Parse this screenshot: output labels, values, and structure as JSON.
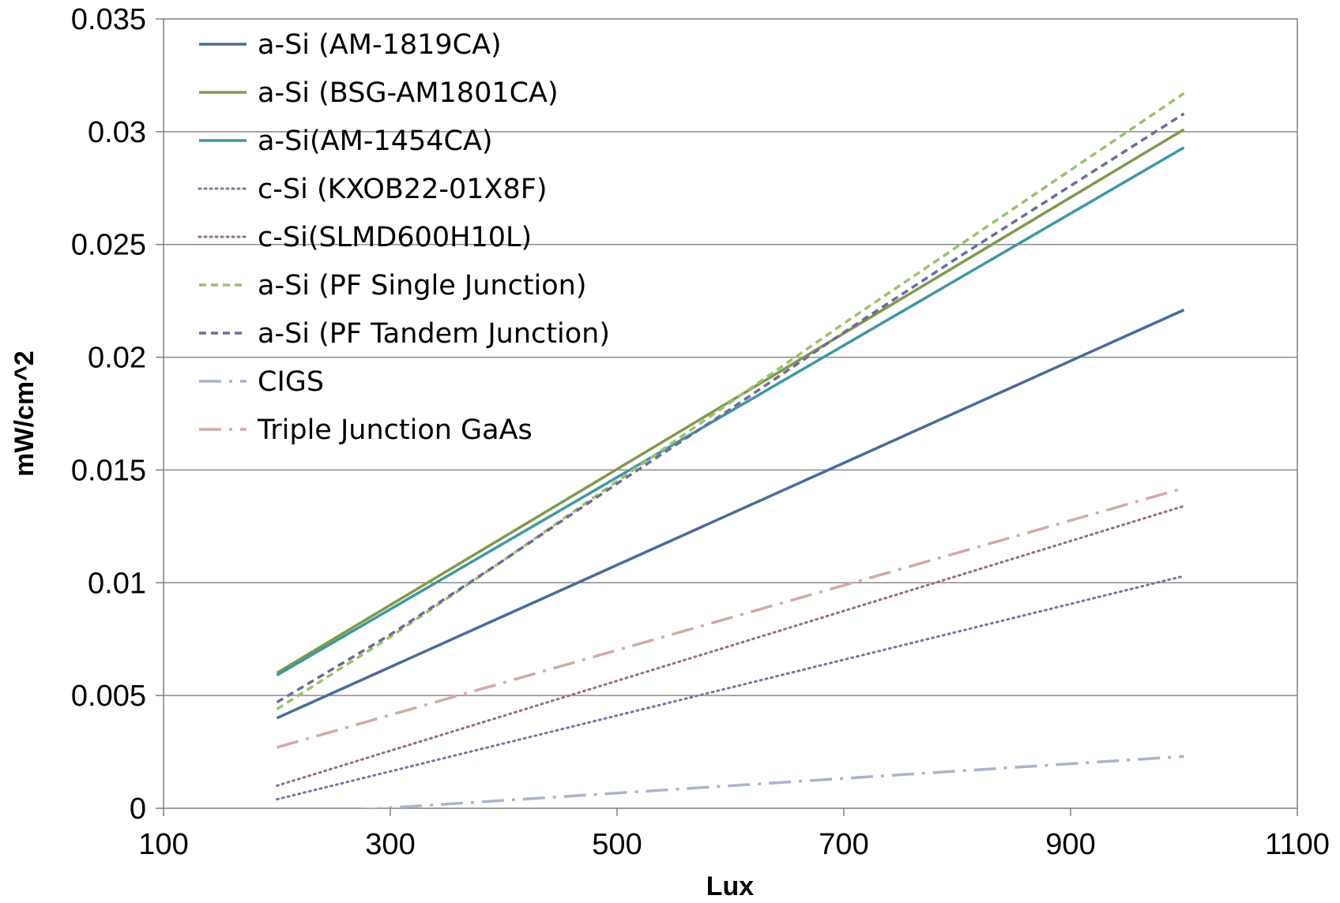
{
  "chart_data": {
    "type": "line",
    "title": "",
    "xlabel": "Lux",
    "ylabel": "mW/cm^2",
    "xlim": [
      100,
      1100
    ],
    "ylim": [
      0,
      0.035
    ],
    "xticks": [
      100,
      300,
      500,
      700,
      900,
      1100
    ],
    "xtick_labels": [
      "100",
      "300",
      "500",
      "700",
      "900",
      "1100"
    ],
    "yticks": [
      0,
      0.005,
      0.01,
      0.015,
      0.02,
      0.025,
      0.03,
      0.035
    ],
    "ytick_labels": [
      "0",
      "0.005",
      "0.01",
      "0.015",
      "0.02",
      "0.025",
      "0.03",
      "0.035"
    ],
    "grid": "horizontal",
    "legend_position": "top-left",
    "series": [
      {
        "name": "a-Si (AM-1819CA)",
        "color": "#4a6a9a",
        "style": "solid",
        "x": [
          200,
          1000
        ],
        "y": [
          0.004,
          0.0221
        ]
      },
      {
        "name": "a-Si (BSG-AM1801CA)",
        "color": "#7f9a4a",
        "style": "solid",
        "x": [
          200,
          1000
        ],
        "y": [
          0.006,
          0.0301
        ]
      },
      {
        "name": "a-Si(AM-1454CA)",
        "color": "#3f97a3",
        "style": "solid",
        "x": [
          200,
          1000
        ],
        "y": [
          0.0059,
          0.0293
        ]
      },
      {
        "name": "c-Si (KXOB22-01X8F)",
        "color": "#7b74a6",
        "style": "dotted",
        "x": [
          200,
          1000
        ],
        "y": [
          0.0004,
          0.0103
        ]
      },
      {
        "name": "c-Si(SLMD600H10L)",
        "color": "#9a6e78",
        "style": "dotted",
        "x": [
          200,
          1000
        ],
        "y": [
          0.001,
          0.0134
        ]
      },
      {
        "name": "a-Si (PF Single Junction)",
        "color": "#9cc26a",
        "style": "dashed",
        "x": [
          200,
          300,
          400,
          500,
          600,
          700,
          800,
          900,
          1000
        ],
        "y": [
          0.0044,
          0.0076,
          0.011,
          0.0145,
          0.018,
          0.0215,
          0.0249,
          0.0283,
          0.0317
        ]
      },
      {
        "name": "a-Si (PF Tandem Junction)",
        "color": "#6e6a9e",
        "style": "dashed",
        "x": [
          200,
          300,
          400,
          500,
          600,
          700,
          800,
          900,
          1000
        ],
        "y": [
          0.0047,
          0.0077,
          0.011,
          0.0144,
          0.0177,
          0.0211,
          0.0244,
          0.0276,
          0.0308
        ]
      },
      {
        "name": "CIGS",
        "color": "#a9b4cf",
        "style": "dashdot",
        "x": [
          200,
          1000
        ],
        "y": [
          -0.0003,
          0.0023
        ]
      },
      {
        "name": "Triple Junction GaAs",
        "color": "#d3aaa6",
        "style": "dashdot",
        "x": [
          200,
          1000
        ],
        "y": [
          0.0027,
          0.0142
        ]
      }
    ]
  }
}
